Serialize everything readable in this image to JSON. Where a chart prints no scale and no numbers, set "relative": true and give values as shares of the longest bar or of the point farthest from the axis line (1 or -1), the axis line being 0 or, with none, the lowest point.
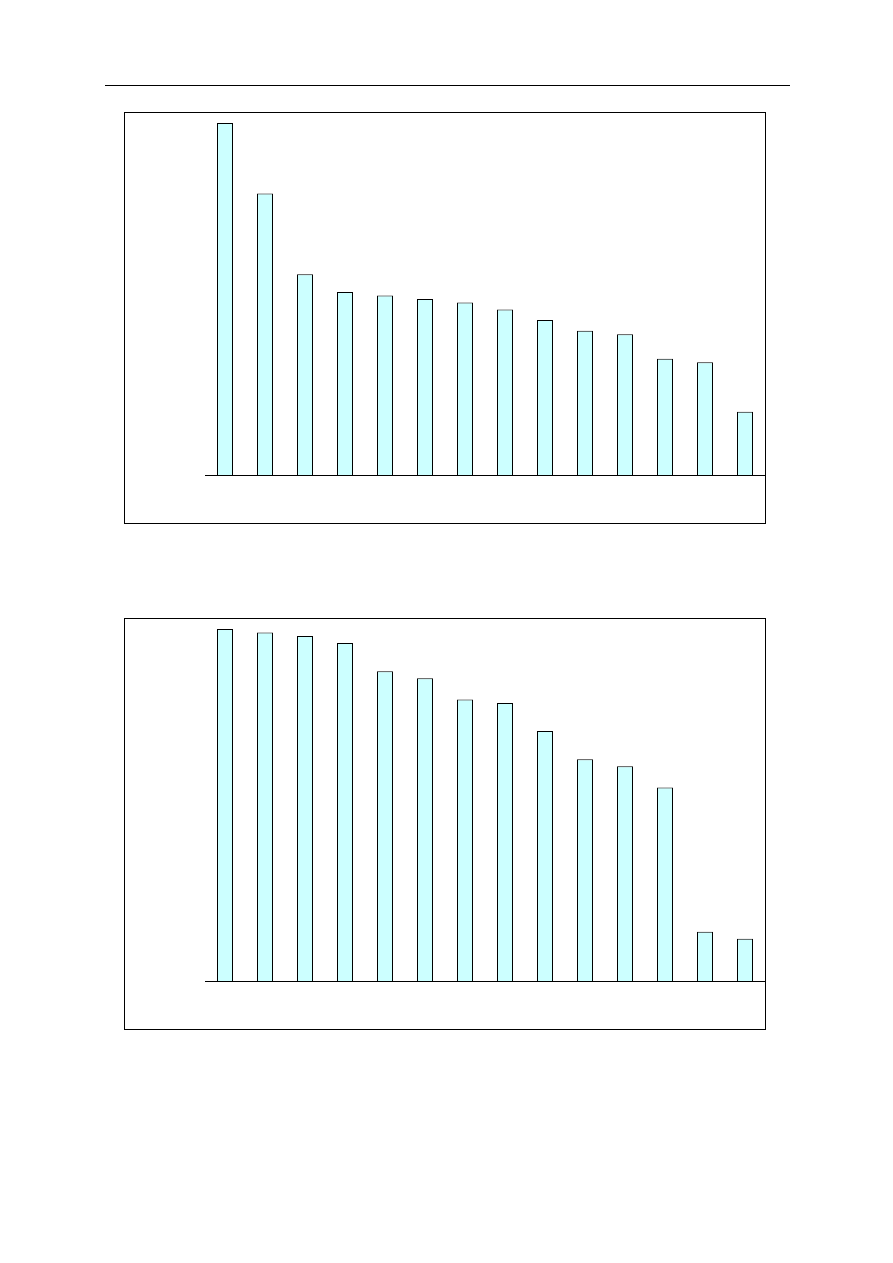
{
  "chart_data": [
    {
      "type": "bar",
      "relative": true,
      "categories": [
        null,
        null,
        null,
        null,
        null,
        null,
        null,
        null,
        null,
        null,
        null,
        null,
        null,
        null
      ],
      "values": [
        1,
        0.8,
        0.57,
        0.52,
        0.51,
        0.5,
        0.49,
        0.47,
        0.44,
        0.41,
        0.4,
        0.33,
        0.32,
        0.18
      ],
      "color": "#ccffff"
    },
    {
      "type": "bar",
      "relative": true,
      "categories": [
        null,
        null,
        null,
        null,
        null,
        null,
        null,
        null,
        null,
        null,
        null,
        null,
        null,
        null
      ],
      "values": [
        1,
        0.99,
        0.98,
        0.96,
        0.88,
        0.86,
        0.8,
        0.79,
        0.71,
        0.63,
        0.61,
        0.55,
        0.14,
        0.12
      ],
      "color": "#ccffff"
    }
  ]
}
